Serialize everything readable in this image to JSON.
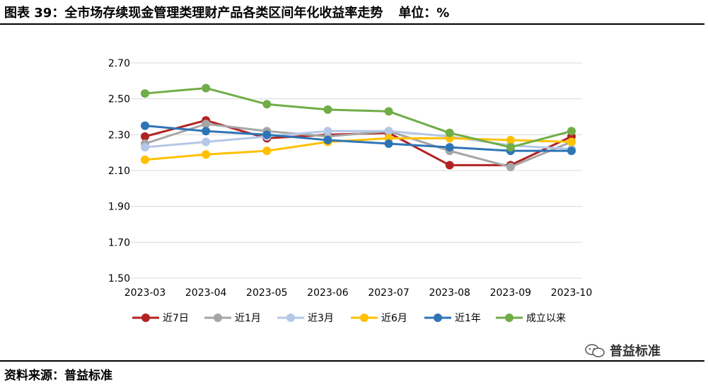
{
  "header": {
    "title": "图表 39：全市场存续现金管理类理财产品各类区间年化收益率走势",
    "unit": "单位：%"
  },
  "footer": {
    "source": "资料来源：普益标准",
    "watermark": "普益标准"
  },
  "chart_data": {
    "type": "line",
    "x": [
      "2023-03",
      "2023-04",
      "2023-05",
      "2023-06",
      "2023-07",
      "2023-08",
      "2023-09",
      "2023-10"
    ],
    "ylim": [
      1.5,
      2.7
    ],
    "yticks": [
      "2.70",
      "2.50",
      "2.30",
      "2.10",
      "1.90",
      "1.70",
      "1.50"
    ],
    "grid": true,
    "legend_position": "bottom",
    "series": [
      {
        "name": "近7日",
        "color": "#B22222",
        "values": [
          2.29,
          2.38,
          2.28,
          2.3,
          2.31,
          2.13,
          2.13,
          2.29
        ]
      },
      {
        "name": "近1月",
        "color": "#A6A6A6",
        "values": [
          2.25,
          2.36,
          2.32,
          2.29,
          2.32,
          2.21,
          2.12,
          2.26
        ]
      },
      {
        "name": "近3月",
        "color": "#B4C7E7",
        "values": [
          2.23,
          2.26,
          2.29,
          2.32,
          2.32,
          2.29,
          2.24,
          2.22
        ]
      },
      {
        "name": "近6月",
        "color": "#FFC000",
        "values": [
          2.16,
          2.19,
          2.21,
          2.26,
          2.28,
          2.28,
          2.27,
          2.26
        ]
      },
      {
        "name": "近1年",
        "color": "#2E75B6",
        "values": [
          2.35,
          2.32,
          2.3,
          2.27,
          2.25,
          2.23,
          2.21,
          2.21
        ]
      },
      {
        "name": "成立以来",
        "color": "#70AD47",
        "values": [
          2.53,
          2.56,
          2.47,
          2.44,
          2.43,
          2.31,
          2.23,
          2.32
        ]
      }
    ]
  }
}
